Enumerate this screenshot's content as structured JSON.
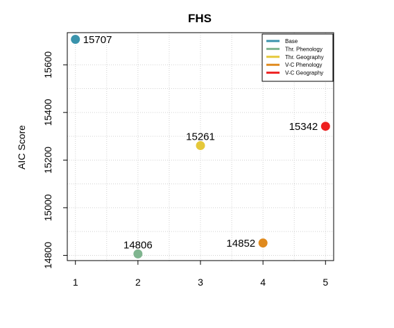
{
  "chart_data": {
    "type": "scatter",
    "title": "FHS",
    "xlabel": "",
    "ylabel": "AIC Score",
    "x_ticks": [
      "1",
      "2",
      "3",
      "4",
      "5"
    ],
    "y_ticks": [
      "14800",
      "15000",
      "15200",
      "15400",
      "15600"
    ],
    "xlim": [
      0.87,
      5.13
    ],
    "ylim": [
      14778,
      15735
    ],
    "grid": true,
    "legend_position": "top-right",
    "series": [
      {
        "name": "Base",
        "color": "#3a93ac",
        "x": [
          1
        ],
        "values": [
          15707
        ],
        "labels": [
          "15707"
        ],
        "label_side": "right"
      },
      {
        "name": "Thr. Phenology",
        "color": "#7fb58f",
        "x": [
          2
        ],
        "values": [
          14806
        ],
        "labels": [
          "14806"
        ],
        "label_side": "above"
      },
      {
        "name": "Thr. Geography",
        "color": "#e5c83a",
        "x": [
          3
        ],
        "values": [
          15261
        ],
        "labels": [
          "15261"
        ],
        "label_side": "above"
      },
      {
        "name": "V-C Phenology",
        "color": "#e08a1e",
        "x": [
          4
        ],
        "values": [
          14852
        ],
        "labels": [
          "14852"
        ],
        "label_side": "left"
      },
      {
        "name": "V-C Geography",
        "color": "#ee2020",
        "x": [
          5
        ],
        "values": [
          15342
        ],
        "labels": [
          "15342"
        ],
        "label_side": "left"
      }
    ]
  }
}
